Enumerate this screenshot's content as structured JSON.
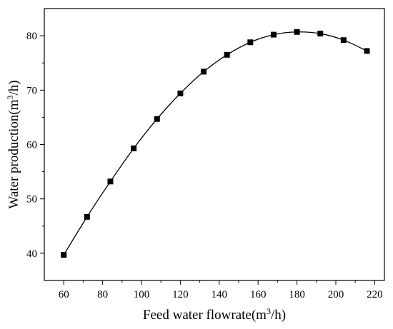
{
  "chart_data": {
    "type": "line",
    "title": "",
    "xlabel": "Feed water flowrate(m",
    "xlabel_sup": "3",
    "xlabel_tail": "/h)",
    "ylabel": "Water production(m",
    "ylabel_sup": "3",
    "ylabel_tail": "/h)",
    "xlim": [
      50,
      225
    ],
    "ylim": [
      35,
      85
    ],
    "x_ticks": [
      60,
      80,
      100,
      120,
      140,
      160,
      180,
      200,
      220
    ],
    "y_ticks": [
      40,
      50,
      60,
      70,
      80
    ],
    "grid": false,
    "legend": "none",
    "marker": "square",
    "line_color": "#000000",
    "series": [
      {
        "x": [
          60,
          72,
          84,
          96,
          108,
          120,
          132,
          144,
          156,
          168,
          180,
          192,
          204,
          216
        ],
        "y": [
          39.7,
          46.7,
          53.2,
          59.3,
          64.7,
          69.4,
          73.4,
          76.5,
          78.8,
          80.2,
          80.7,
          80.4,
          79.2,
          77.2
        ]
      }
    ]
  }
}
